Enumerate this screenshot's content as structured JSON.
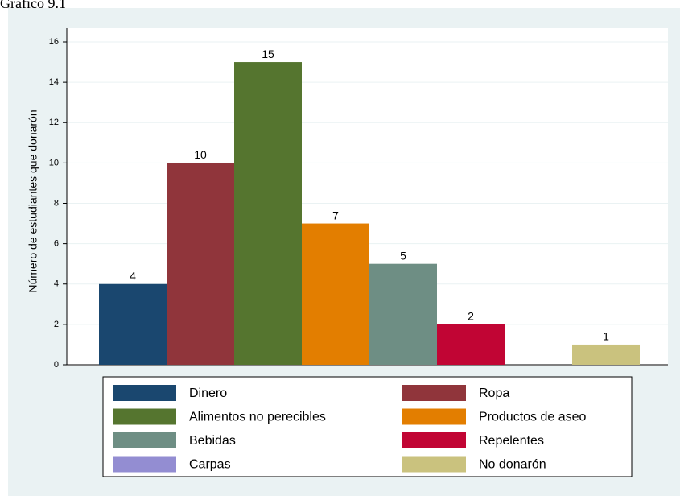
{
  "chart_data": {
    "type": "bar",
    "title": "Gráfico 9.1",
    "ylabel": "Número de estudiantes que donarón",
    "categories": [
      "Dinero",
      "Ropa",
      "Alimentos no perecibles",
      "Productos de aseo",
      "Bebidas",
      "Repelentes",
      "Carpas",
      "No donarón"
    ],
    "values": [
      4,
      10,
      15,
      7,
      5,
      2,
      null,
      1
    ],
    "colors": [
      "#1a476f",
      "#90353b",
      "#55752f",
      "#e37e00",
      "#6e8e84",
      "#c10534",
      "#938dd2",
      "#cac27e"
    ],
    "ylim": [
      0,
      16
    ],
    "yticks": [
      0,
      2,
      4,
      6,
      8,
      10,
      12,
      14,
      16
    ],
    "grid": true
  }
}
